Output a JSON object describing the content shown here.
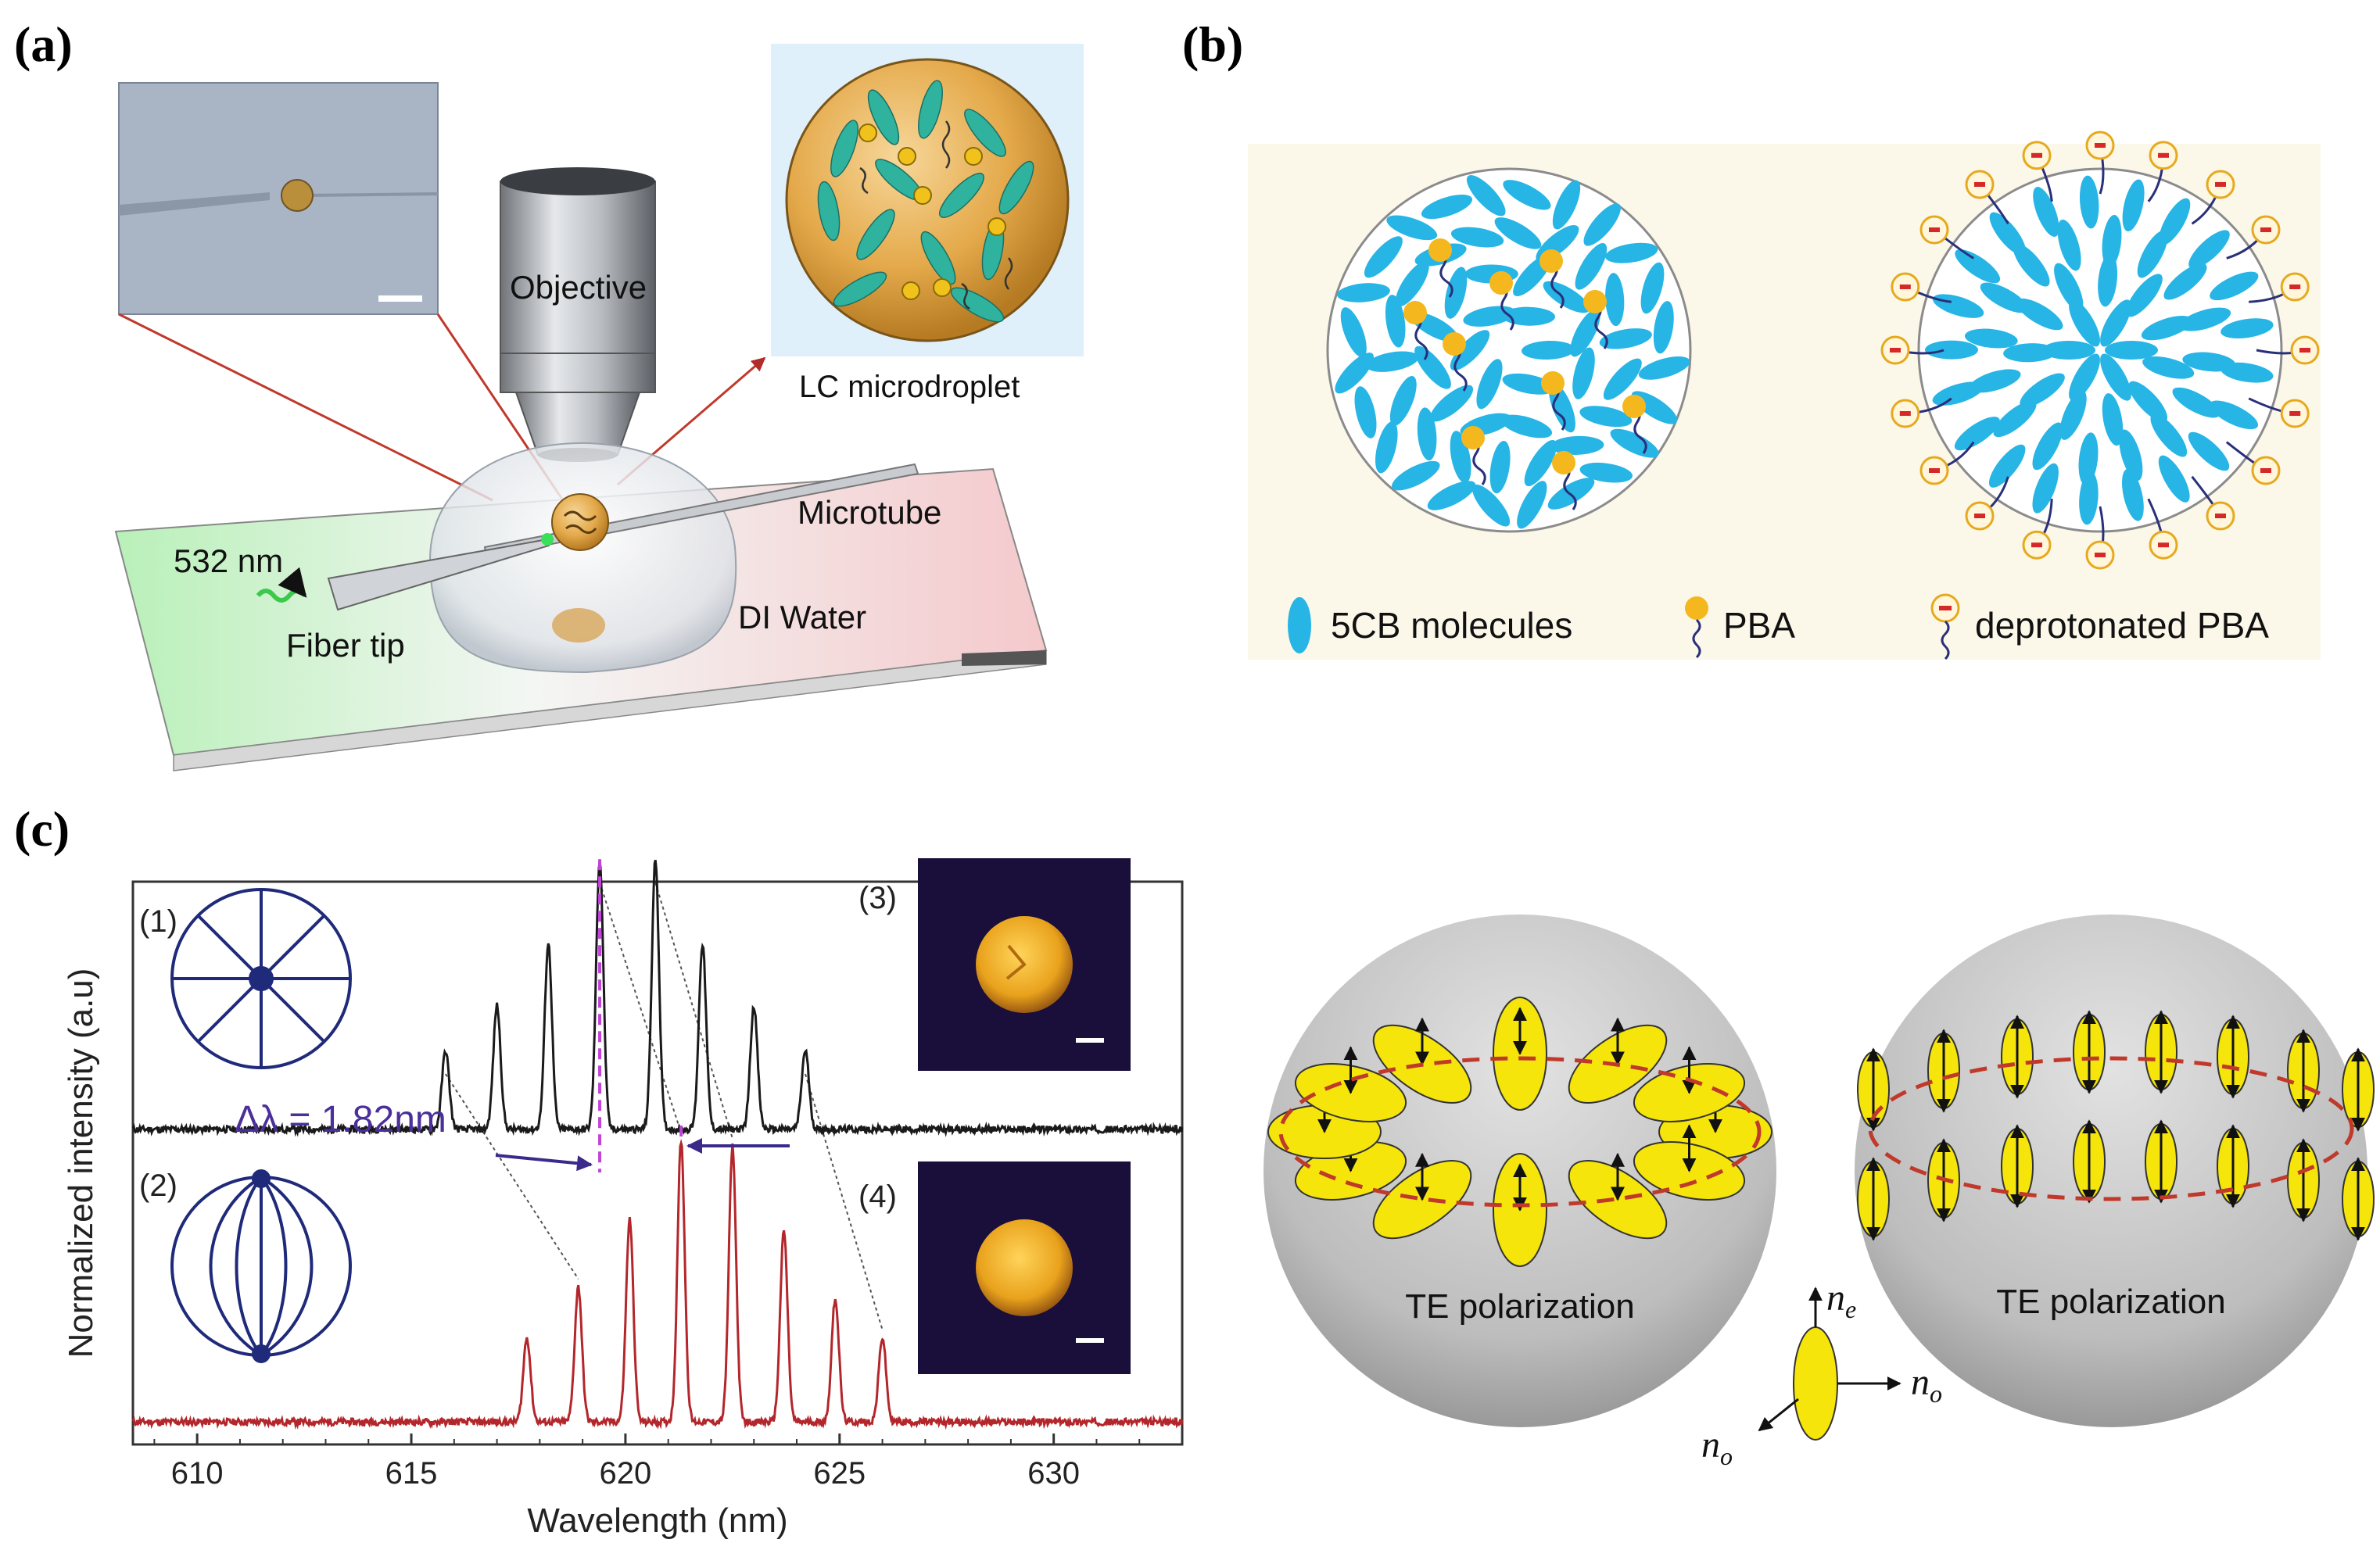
{
  "panels": {
    "a": {
      "label": "(a)",
      "objective": "Objective",
      "lc_microdroplet": "LC microdroplet",
      "microtube": "Microtube",
      "wavelength": "532 nm",
      "di_water": "DI Water",
      "fiber_tip": "Fiber tip"
    },
    "b": {
      "label": "(b)",
      "legend": {
        "molecules": "5CB molecules",
        "pba": "PBA",
        "deprotonated": "deprotonated PBA"
      },
      "colors": {
        "molecule": "#27b5e6",
        "pba_head": "#f4b81e",
        "chain": "#2a2f7a"
      }
    },
    "c": {
      "label": "(c)",
      "inset_labels": [
        "(1)",
        "(2)",
        "(3)",
        "(4)"
      ],
      "delta_label": "Δλ = 1.82nm",
      "te_left": "TE polarization",
      "te_right": "TE polarization",
      "n_e": "n",
      "n_e_sub": "e",
      "n_o": "n",
      "n_o_sub": "o"
    }
  },
  "chart_data": {
    "type": "line",
    "xlabel": "Wavelength (nm)",
    "ylabel": "Normalized intensity (a.u)",
    "xlim": [
      608.5,
      633
    ],
    "xticks": [
      610,
      615,
      620,
      625,
      630
    ],
    "series": [
      {
        "color": "#1a1a1a",
        "baseline": 0.56,
        "peaks": [
          {
            "x": 615.8,
            "h": 0.14
          },
          {
            "x": 617.0,
            "h": 0.22
          },
          {
            "x": 618.2,
            "h": 0.33
          },
          {
            "x": 619.4,
            "h": 0.48
          },
          {
            "x": 620.7,
            "h": 0.48
          },
          {
            "x": 621.8,
            "h": 0.33
          },
          {
            "x": 623.0,
            "h": 0.22
          },
          {
            "x": 624.2,
            "h": 0.14
          }
        ]
      },
      {
        "color": "#b3262b",
        "baseline": 0.04,
        "peaks": [
          {
            "x": 617.7,
            "h": 0.15
          },
          {
            "x": 618.9,
            "h": 0.24
          },
          {
            "x": 620.1,
            "h": 0.36
          },
          {
            "x": 621.3,
            "h": 0.5
          },
          {
            "x": 622.5,
            "h": 0.49
          },
          {
            "x": 623.7,
            "h": 0.34
          },
          {
            "x": 624.9,
            "h": 0.22
          },
          {
            "x": 626.0,
            "h": 0.15
          }
        ]
      }
    ],
    "delta_lambda_markers": [
      619.4,
      621.3
    ],
    "peak_links": [
      [
        615.8,
        618.9
      ],
      [
        619.4,
        621.3
      ],
      [
        620.7,
        622.5
      ],
      [
        624.2,
        626.0
      ]
    ]
  }
}
